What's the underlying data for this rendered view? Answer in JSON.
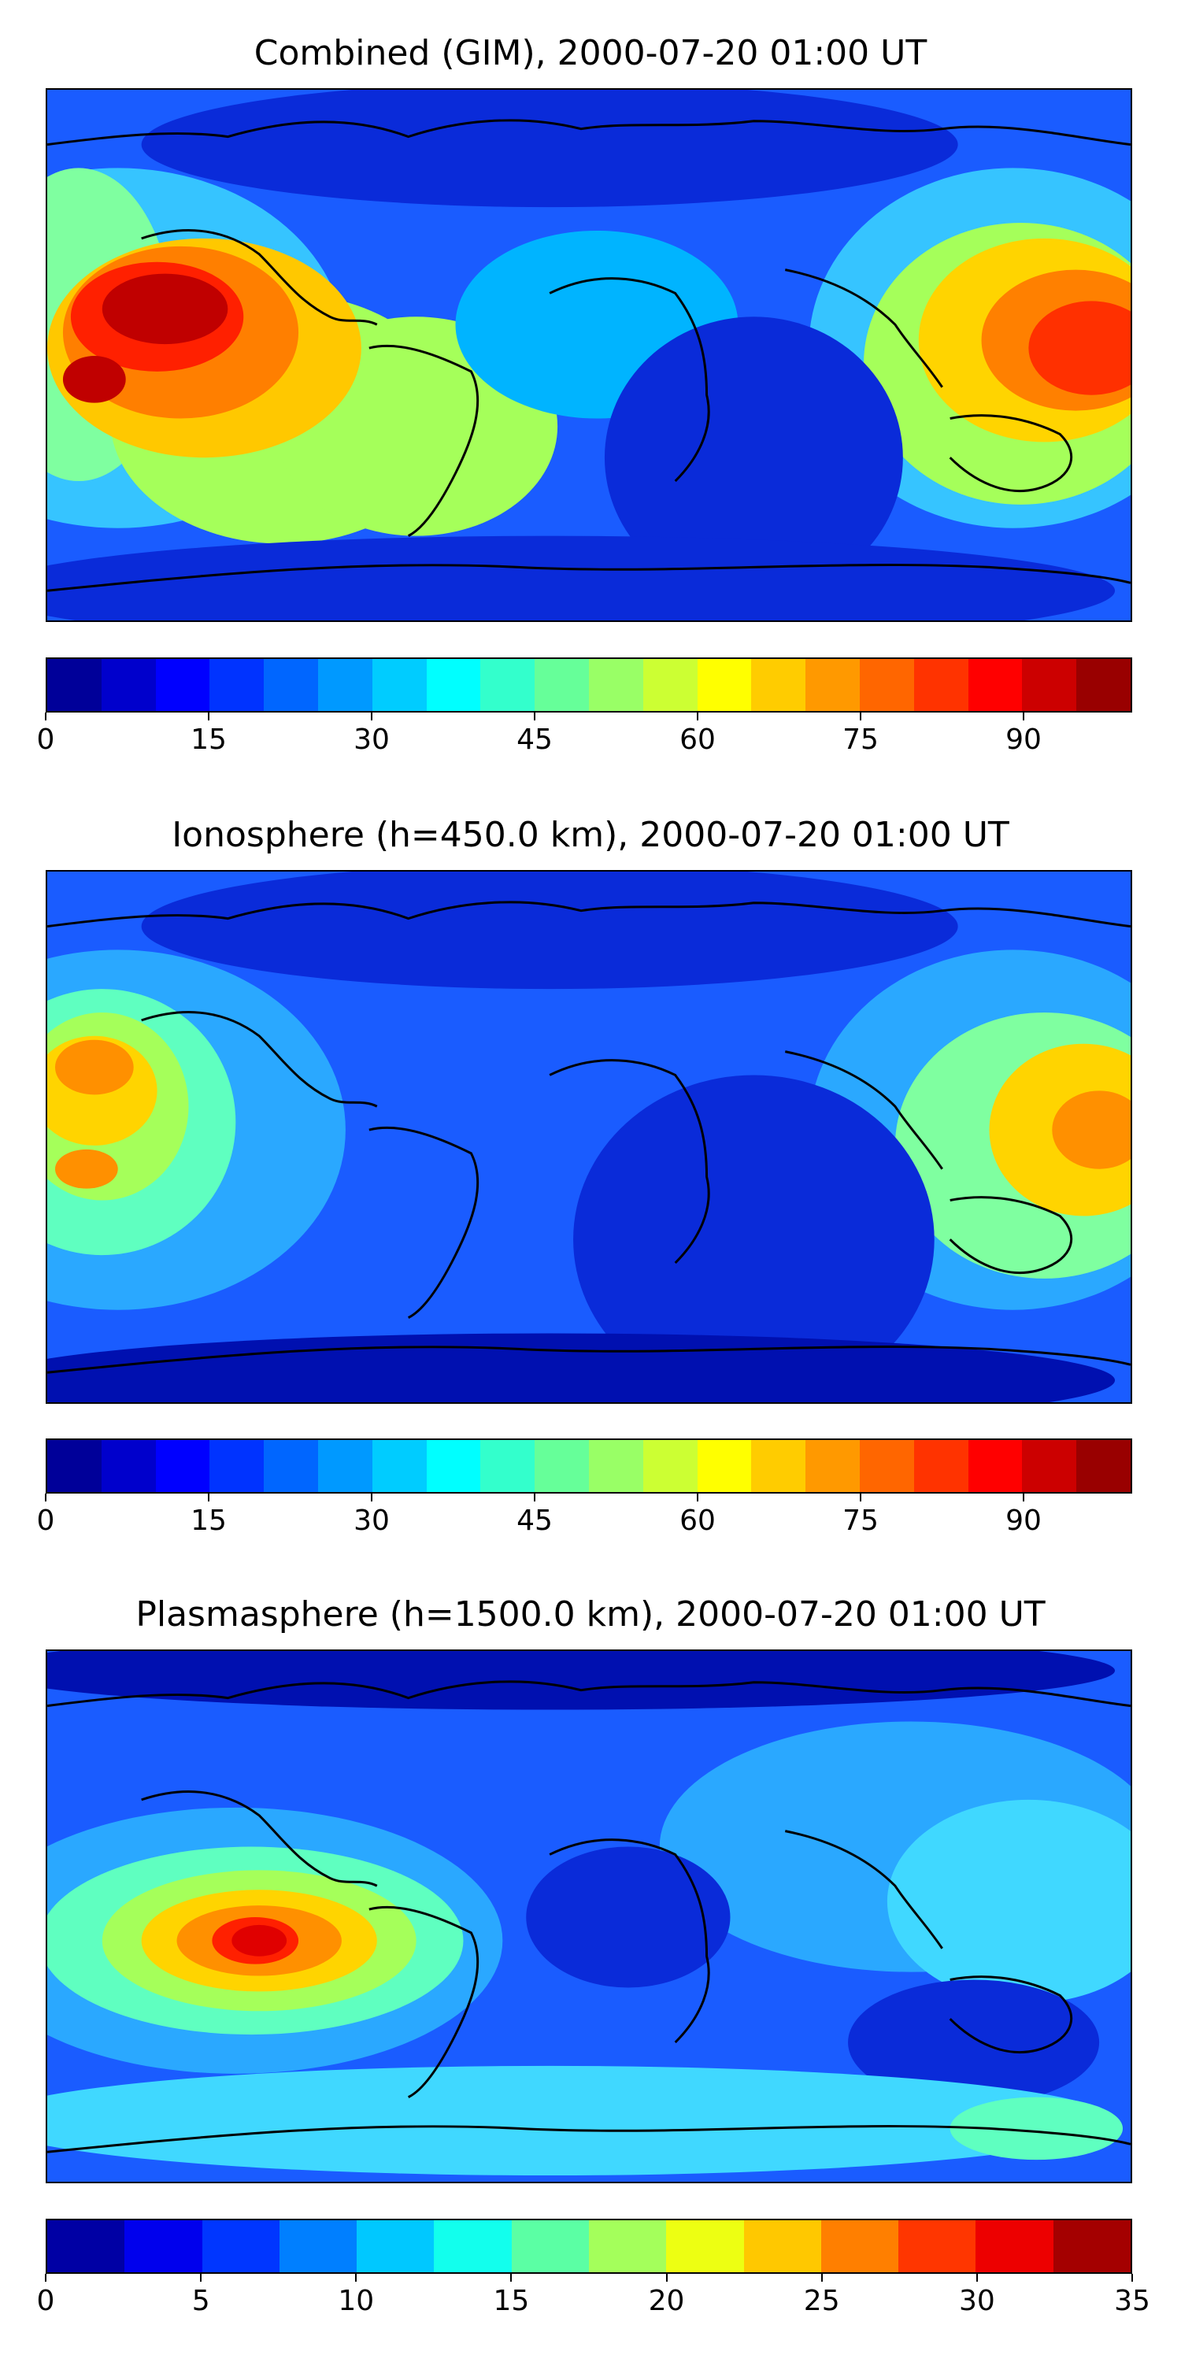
{
  "panels": [
    {
      "title": "Combined (GIM), 2000-07-20 01:00 UT",
      "colorbar": {
        "min": 0,
        "max": 100,
        "levels": 20,
        "ticks": [
          "0",
          "15",
          "30",
          "45",
          "60",
          "75",
          "90"
        ],
        "tick_values": [
          0,
          15,
          30,
          45,
          60,
          75,
          90
        ]
      }
    },
    {
      "title": "Ionosphere  (h=450.0 km), 2000-07-20 01:00 UT",
      "colorbar": {
        "min": 0,
        "max": 100,
        "levels": 20,
        "ticks": [
          "0",
          "15",
          "30",
          "45",
          "60",
          "75",
          "90"
        ],
        "tick_values": [
          0,
          15,
          30,
          45,
          60,
          75,
          90
        ]
      }
    },
    {
      "title": "Plasmasphere (h=1500.0 km), 2000-07-20 01:00 UT",
      "colorbar": {
        "min": 0,
        "max": 35,
        "levels": 14,
        "ticks": [
          "0",
          "5",
          "10",
          "15",
          "20",
          "25",
          "30",
          "35"
        ],
        "tick_values": [
          0,
          5,
          10,
          15,
          20,
          25,
          30,
          35
        ]
      }
    }
  ],
  "colormap": "jet",
  "colors": {
    "jet": [
      "#00007f",
      "#0000ff",
      "#007fff",
      "#00ffff",
      "#7fff7f",
      "#ffff00",
      "#ff7f00",
      "#ff0000",
      "#7f0000"
    ]
  }
}
